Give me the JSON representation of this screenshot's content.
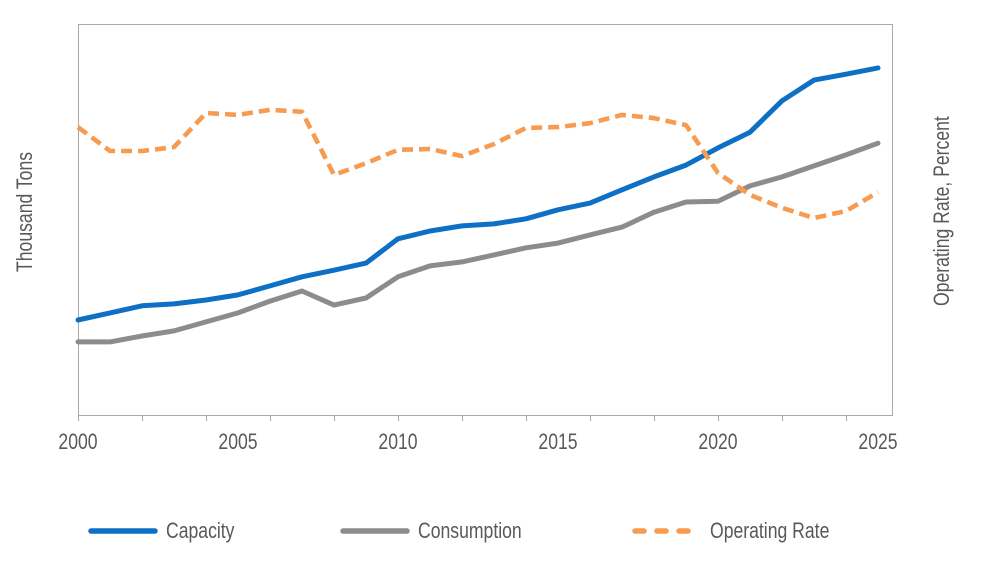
{
  "chart_data": {
    "type": "line",
    "title": "",
    "xlabel": "",
    "ylabel_left": "Thousand Tons",
    "ylabel_right": "Operating Rate, Percent",
    "grid": false,
    "plot_border": true,
    "y_axis_note": "no numeric y tick labels are shown; series values below are percent of plot height (0 = bottom axis, 100 = top axis)",
    "ylim": [
      0,
      100
    ],
    "x_axis": {
      "range": [
        2000,
        2025.5
      ],
      "labels": [
        {
          "year": 2000,
          "text": "2000"
        },
        {
          "year": 2005,
          "text": "2005"
        },
        {
          "year": 2010,
          "text": "2010"
        },
        {
          "year": 2015,
          "text": "2015"
        },
        {
          "year": 2020,
          "text": "2020"
        },
        {
          "year": 2025,
          "text": "2025"
        }
      ],
      "minor_tick_years": [
        2000,
        2002,
        2004,
        2006,
        2008,
        2010,
        2012,
        2014,
        2016,
        2018,
        2020,
        2022,
        2024
      ]
    },
    "x": [
      2000,
      2001,
      2002,
      2003,
      2004,
      2005,
      2006,
      2007,
      2008,
      2009,
      2010,
      2011,
      2012,
      2013,
      2014,
      2015,
      2016,
      2017,
      2018,
      2019,
      2020,
      2021,
      2022,
      2023,
      2024,
      2025
    ],
    "series": [
      {
        "name": "Capacity",
        "axis": "left",
        "style": "solid",
        "color": "#0E70C4",
        "values": [
          24.5,
          26.3,
          28.1,
          28.6,
          29.6,
          30.9,
          33.2,
          35.5,
          37.2,
          39.0,
          45.2,
          47.2,
          48.5,
          49.0,
          50.3,
          52.6,
          54.3,
          57.7,
          61.0,
          64.0,
          68.4,
          72.4,
          80.4,
          85.7,
          87.2,
          88.8
        ]
      },
      {
        "name": "Consumption",
        "axis": "left",
        "style": "solid",
        "color": "#8C8C8C",
        "values": [
          18.9,
          18.9,
          20.4,
          21.7,
          24.0,
          26.3,
          29.3,
          31.9,
          28.3,
          30.1,
          35.5,
          38.3,
          39.3,
          41.1,
          42.9,
          44.1,
          46.2,
          48.2,
          52.0,
          54.6,
          54.8,
          58.7,
          61.0,
          63.8,
          66.6,
          69.6
        ]
      },
      {
        "name": "Operating Rate",
        "axis": "right",
        "style": "dashed",
        "color": "#F79B50",
        "values": [
          73.7,
          67.6,
          67.6,
          68.6,
          77.3,
          76.8,
          78.1,
          77.6,
          61.5,
          64.5,
          67.9,
          68.1,
          66.3,
          69.4,
          73.5,
          73.7,
          74.7,
          76.8,
          76.0,
          74.2,
          62.0,
          56.4,
          53.1,
          50.5,
          52.3,
          57.1
        ]
      }
    ],
    "legend": {
      "position": "bottom",
      "entries": [
        "Capacity",
        "Consumption",
        "Operating Rate"
      ]
    }
  },
  "colors": {
    "text": "#595959",
    "axis": "#A9A9A9",
    "background": "#FFFFFF"
  }
}
